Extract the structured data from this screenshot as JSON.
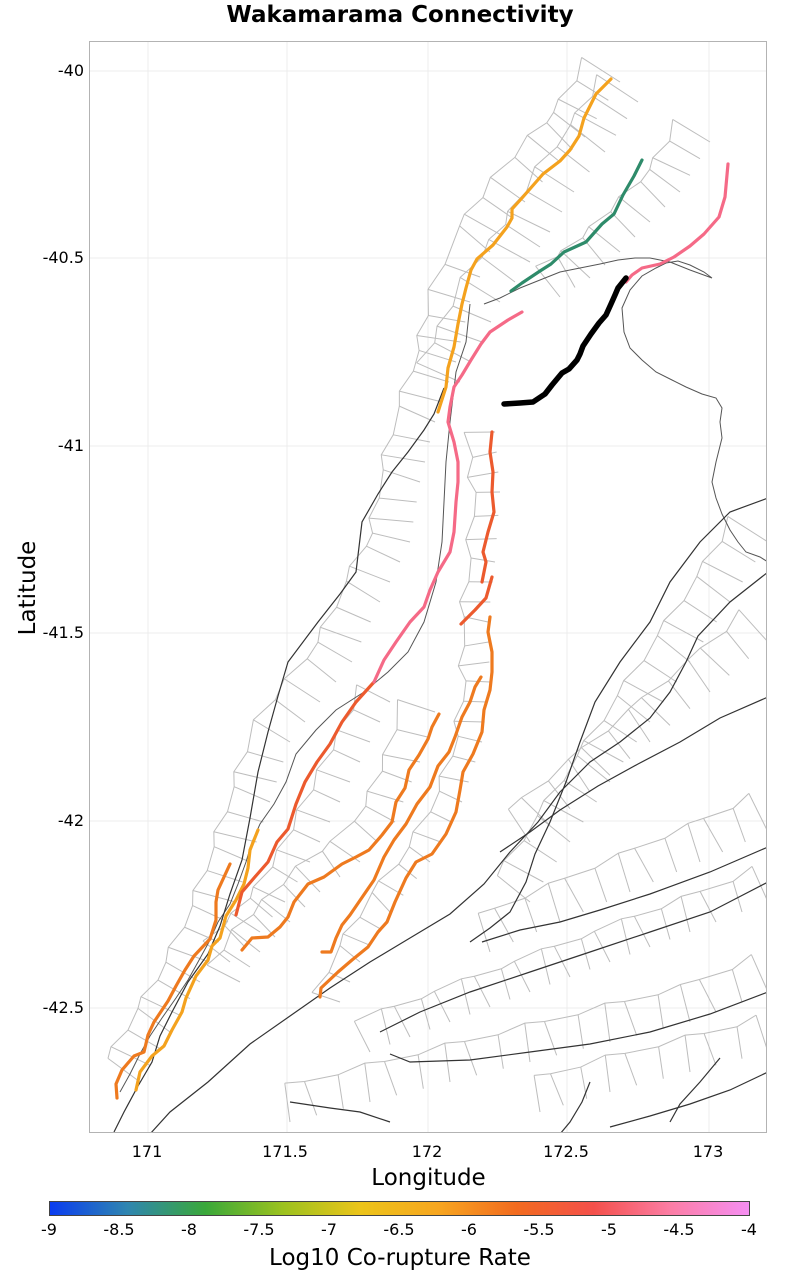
{
  "title": "Wakamarama Connectivity",
  "x_axis": {
    "label": "Longitude",
    "ticks": [
      "171",
      "171.5",
      "172",
      "172.5",
      "173"
    ]
  },
  "y_axis": {
    "label": "Latitude",
    "ticks": [
      "-40",
      "-40.5",
      "-41",
      "-41.5",
      "-42",
      "-42.5"
    ]
  },
  "colorbar": {
    "label": "Log10 Co-rupture Rate",
    "ticks": [
      "-9",
      "-8.5",
      "-8",
      "-7.5",
      "-7",
      "-6.5",
      "-6",
      "-5.5",
      "-5",
      "-4.5",
      "-4"
    ],
    "colors": [
      "#0a3cf0",
      "#2f86b0",
      "#3aa83a",
      "#9cc21f",
      "#ecc41a",
      "#f7a620",
      "#f26b1f",
      "#f4504b",
      "#fc7ea6",
      "#f58ef2"
    ]
  },
  "legend_colors": {
    "source": "#000000",
    "green": "#2e8b6a",
    "pink": "#f56a87",
    "light_orange": "#f4a21e",
    "orange": "#ee7a1f",
    "red_orange": "#ec5a2e",
    "coastline": "#555555",
    "fault_trace": "#333333",
    "fault_patch": "#bdbdbd"
  }
}
